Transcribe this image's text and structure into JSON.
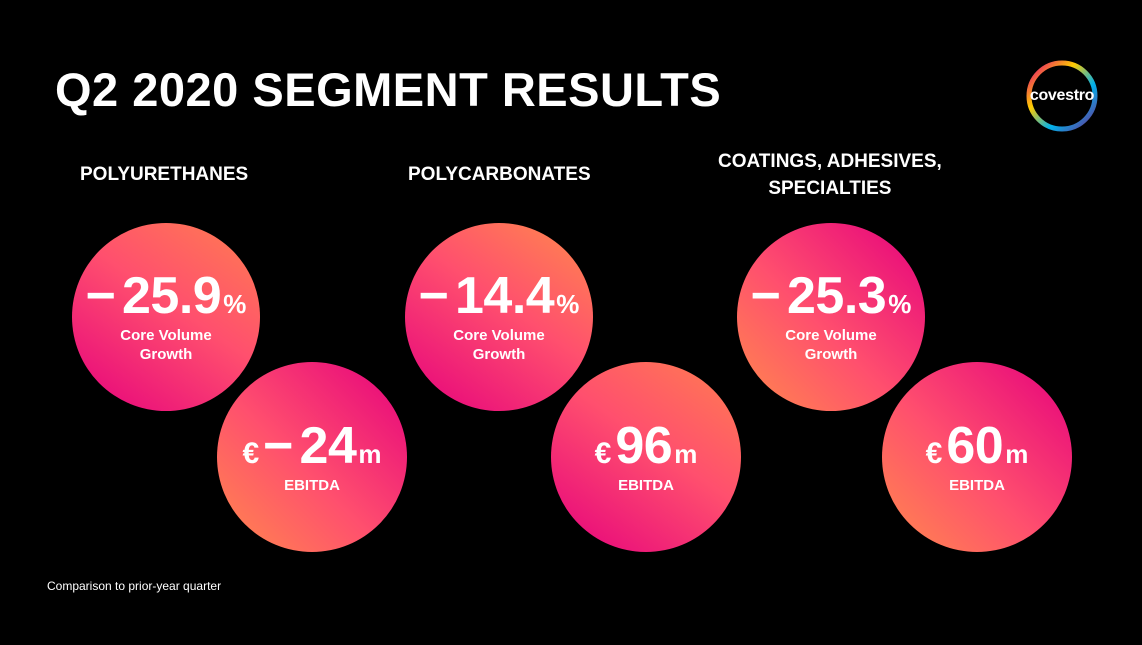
{
  "slide": {
    "title": "Q2 2020 SEGMENT RESULTS",
    "footnote": "Comparison to prior-year quarter"
  },
  "logo": {
    "text": "covestro"
  },
  "segments": [
    {
      "name": "POLYURETHANES",
      "volume": {
        "sign": "−",
        "value": "25.9",
        "unit": "%",
        "label": "Core Volume\nGrowth"
      },
      "ebitda": {
        "currency": "€",
        "sign": "−",
        "value": "24",
        "unit": "m",
        "label": "EBITDA"
      }
    },
    {
      "name": "POLYCARBONATES",
      "volume": {
        "sign": "−",
        "value": "14.4",
        "unit": "%",
        "label": "Core Volume\nGrowth"
      },
      "ebitda": {
        "currency": "€",
        "sign": "",
        "value": "96",
        "unit": "m",
        "label": "EBITDA"
      }
    },
    {
      "name": "COATINGS, ADHESIVES,\nSPECIALTIES",
      "volume": {
        "sign": "−",
        "value": "25.3",
        "unit": "%",
        "label": "Core Volume\nGrowth"
      },
      "ebitda": {
        "currency": "€",
        "sign": "",
        "value": "60",
        "unit": "m",
        "label": "EBITDA"
      }
    }
  ],
  "colors": {
    "background": "#000000",
    "magenta": "#e5007d",
    "pink": "#ff4f6e",
    "orange": "#ff8a4c"
  }
}
